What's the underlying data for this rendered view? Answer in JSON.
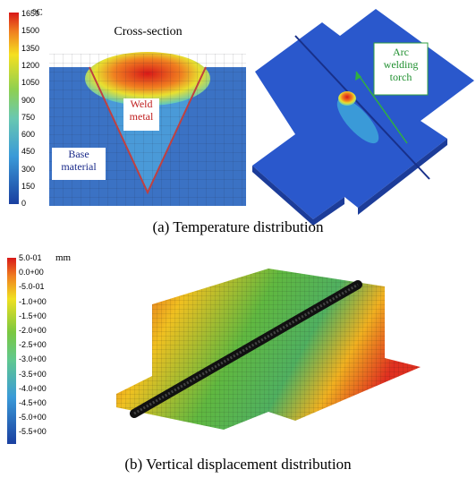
{
  "panel_a": {
    "colorbar": {
      "unit": "°C",
      "labels": [
        "1650",
        "1500",
        "1350",
        "1200",
        "1050",
        "900",
        "750",
        "600",
        "450",
        "300",
        "150",
        "0"
      ]
    },
    "cross_section": {
      "title": "Cross-section",
      "weld_label": "Weld metal",
      "base_label": "Base material"
    },
    "torch_label": "Arc welding torch",
    "caption": "(a) Temperature distribution"
  },
  "panel_b": {
    "colorbar": {
      "unit": "mm",
      "labels": [
        "5.0-01",
        "0.0+00",
        "-5.0-01",
        "-1.0+00",
        "-1.5+00",
        "-2.0+00",
        "-2.5+00",
        "-3.0+00",
        "-3.5+00",
        "-4.0+00",
        "-4.5+00",
        "-5.0+00",
        "-5.5+00"
      ]
    },
    "caption": "(b) Vertical displacement distribution"
  }
}
